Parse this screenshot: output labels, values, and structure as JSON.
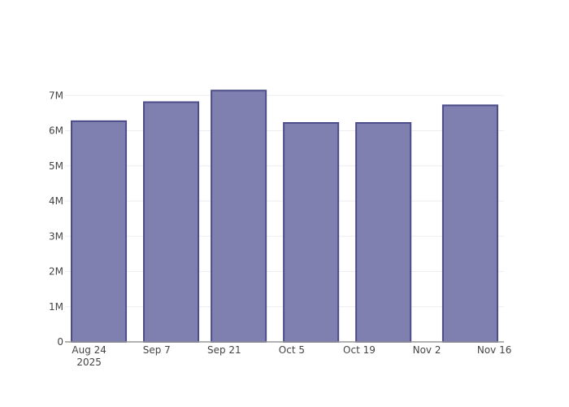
{
  "chart_data": {
    "type": "bar",
    "title": "",
    "xlabel": "",
    "ylabel": "",
    "x": [
      "2025-08-26",
      "2025-09-10",
      "2025-09-24",
      "2025-10-09",
      "2025-10-24",
      "2025-11-11"
    ],
    "values": [
      6270000,
      6810000,
      7140000,
      6220000,
      6220000,
      6720000
    ],
    "xlim": [
      "2025-08-19",
      "2025-11-18"
    ],
    "ylim": [
      0,
      7400000
    ],
    "x_ticks": [
      {
        "date": "2025-08-24",
        "label": "Aug 24",
        "sub": "2025"
      },
      {
        "date": "2025-09-07",
        "label": "Sep 7"
      },
      {
        "date": "2025-09-21",
        "label": "Sep 21"
      },
      {
        "date": "2025-10-05",
        "label": "Oct 5"
      },
      {
        "date": "2025-10-19",
        "label": "Oct 19"
      },
      {
        "date": "2025-11-02",
        "label": "Nov 2"
      },
      {
        "date": "2025-11-16",
        "label": "Nov 16"
      }
    ],
    "y_ticks": [
      {
        "value": 0,
        "label": "0"
      },
      {
        "value": 1000000,
        "label": "1M"
      },
      {
        "value": 2000000,
        "label": "2M"
      },
      {
        "value": 3000000,
        "label": "3M"
      },
      {
        "value": 4000000,
        "label": "4M"
      },
      {
        "value": 5000000,
        "label": "5M"
      },
      {
        "value": 6000000,
        "label": "6M"
      },
      {
        "value": 7000000,
        "label": "7M"
      }
    ],
    "bar_width_days": 11.3,
    "grid": true,
    "colors": {
      "fill": "#7f7fb0",
      "stroke": "#4c4c8a",
      "grid": "#eeeeee",
      "axis": "#999999"
    }
  }
}
